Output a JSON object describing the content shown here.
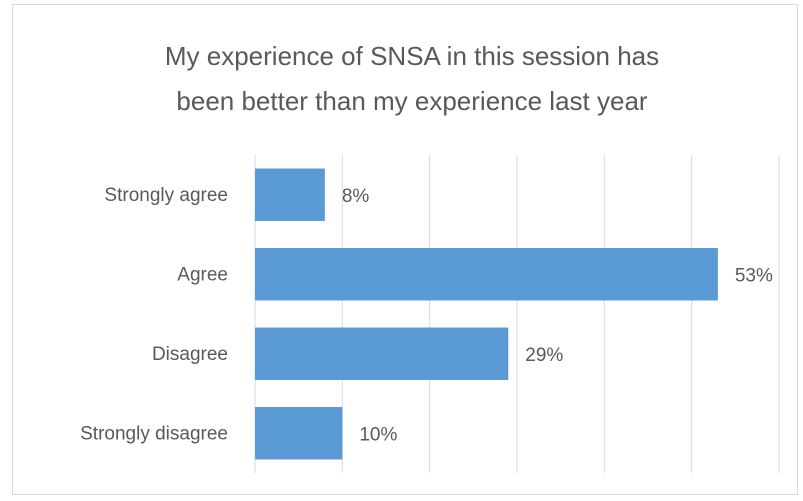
{
  "chart_data": {
    "type": "bar",
    "orientation": "horizontal",
    "title": [
      "My experience of SNSA in this session has",
      "been better than my experience last year"
    ],
    "categories": [
      "Strongly agree",
      "Agree",
      "Disagree",
      "Strongly disagree"
    ],
    "values": [
      8,
      53,
      29,
      10
    ],
    "value_labels": [
      "8%",
      "53%",
      "29%",
      "10%"
    ],
    "color": "#5b9bd5",
    "xlim": [
      0,
      60
    ],
    "xticks": [
      0,
      10,
      20,
      30,
      40,
      50,
      60
    ],
    "grid": true
  }
}
